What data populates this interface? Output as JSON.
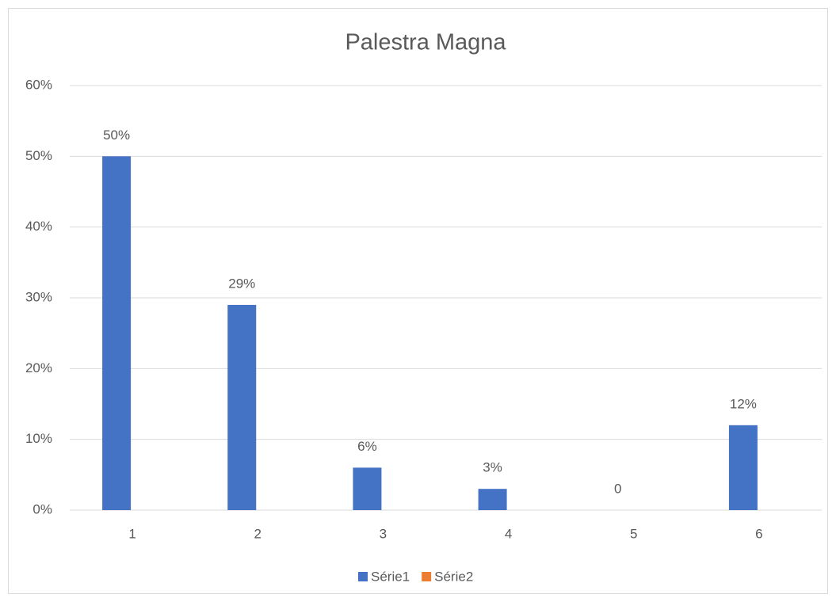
{
  "chart_data": {
    "type": "bar",
    "title": "Palestra Magna",
    "categories": [
      "1",
      "2",
      "3",
      "4",
      "5",
      "6"
    ],
    "series": [
      {
        "name": "Série1",
        "color": "#4472c4",
        "values": [
          50,
          29,
          6,
          3,
          0,
          12
        ],
        "value_labels": [
          "50%",
          "29%",
          "6%",
          "3%",
          "0",
          "12%"
        ]
      },
      {
        "name": "Série2",
        "color": "#ed7d31",
        "values": [
          null,
          null,
          null,
          null,
          null,
          null
        ]
      }
    ],
    "ylim": [
      0,
      60
    ],
    "yticks": [
      {
        "value": 0,
        "label": "0%"
      },
      {
        "value": 10,
        "label": "10%"
      },
      {
        "value": 20,
        "label": "20%"
      },
      {
        "value": 30,
        "label": "30%"
      },
      {
        "value": 40,
        "label": "40%"
      },
      {
        "value": 50,
        "label": "50%"
      },
      {
        "value": 60,
        "label": "60%"
      }
    ],
    "grid": true,
    "legend": "bottom"
  }
}
